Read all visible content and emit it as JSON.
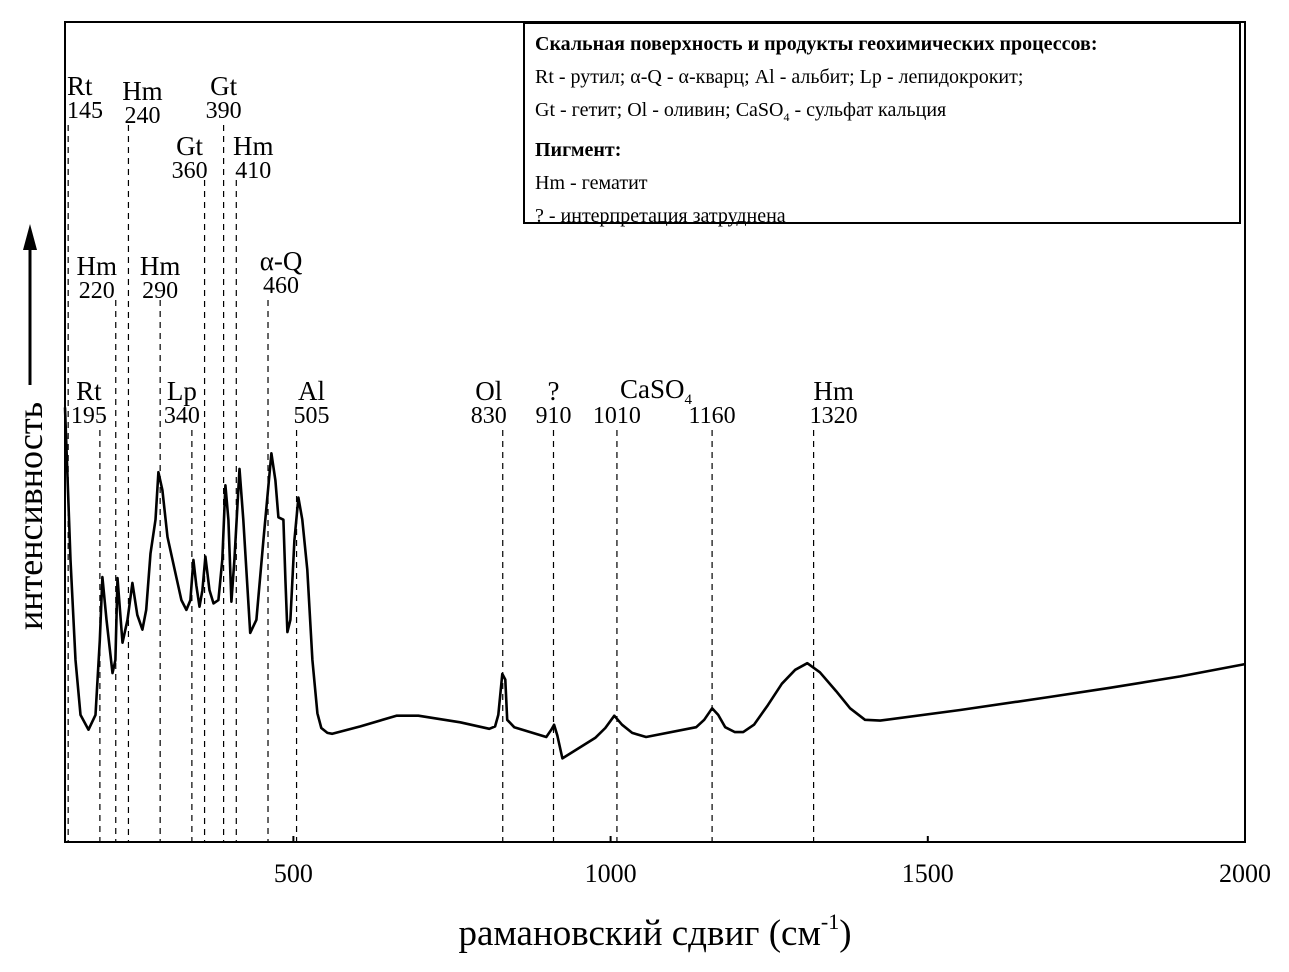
{
  "chart_data": {
    "type": "line",
    "title": "",
    "xlabel": "рамановский сдвиг (см-1)",
    "xlabel_main": "рамановский сдвиг (см",
    "xlabel_sup": "-1",
    "xlabel_close": ")",
    "ylabel": "интенсивность",
    "xlim": [
      140,
      2000
    ],
    "ylim": [
      0,
      1
    ],
    "x_ticks": [
      "500",
      "1000",
      "1500",
      "2000"
    ],
    "x_tick_values": [
      500,
      1000,
      1500,
      2000
    ],
    "grid": false,
    "y_ticks": false,
    "line_color": "#000000",
    "series": [
      {
        "x": [
          140,
          148.6,
          156.5,
          164.4,
          177,
          188,
          194.8,
          199,
          205.4,
          214.8,
          219.5,
          222.7,
          230.6,
          238.5,
          246.3,
          254,
          262,
          268,
          274.7,
          282.6,
          287.3,
          293.6,
          301.5,
          314,
          323.5,
          331.4,
          337.7,
          342.4,
          347,
          352,
          356.6,
          361.3,
          367.7,
          374,
          381.8,
          388,
          392.9,
          397.6,
          402.3,
          407,
          415,
          421,
          432,
          441.7,
          452.7,
          465.3,
          471.6,
          476.4,
          484.2,
          487.4,
          490.5,
          495.3,
          501.6,
          507.9,
          514,
          522,
          530,
          537.8,
          544,
          553.6,
          561.4,
          605.6,
          662.3,
          697,
          763,
          808.8,
          818,
          823,
          829.3,
          834,
          837,
          848,
          898.6,
          906.5,
          911,
          916,
          924,
          975.8,
          991.6,
          1005.8,
          1018,
          1034,
          1056,
          1135,
          1147.5,
          1160,
          1169.6,
          1180.6,
          1196,
          1209,
          1226,
          1248,
          1270,
          1291,
          1310,
          1330,
          1355.5,
          1377.6,
          1401,
          1425,
          1551,
          1693,
          1787,
          1898,
          2000
        ],
        "y": [
          0.53,
          0.344,
          0.222,
          0.155,
          0.137,
          0.155,
          0.246,
          0.323,
          0.271,
          0.206,
          0.222,
          0.322,
          0.243,
          0.271,
          0.316,
          0.277,
          0.259,
          0.283,
          0.352,
          0.393,
          0.451,
          0.429,
          0.372,
          0.328,
          0.295,
          0.283,
          0.295,
          0.344,
          0.313,
          0.287,
          0.307,
          0.348,
          0.307,
          0.291,
          0.295,
          0.344,
          0.435,
          0.393,
          0.293,
          0.344,
          0.455,
          0.393,
          0.255,
          0.271,
          0.368,
          0.474,
          0.441,
          0.396,
          0.393,
          0.32,
          0.256,
          0.271,
          0.368,
          0.42,
          0.393,
          0.332,
          0.222,
          0.157,
          0.139,
          0.133,
          0.132,
          0.141,
          0.154,
          0.154,
          0.146,
          0.138,
          0.141,
          0.155,
          0.205,
          0.198,
          0.149,
          0.14,
          0.128,
          0.137,
          0.143,
          0.13,
          0.102,
          0.127,
          0.139,
          0.154,
          0.143,
          0.133,
          0.128,
          0.14,
          0.149,
          0.163,
          0.155,
          0.14,
          0.134,
          0.134,
          0.143,
          0.167,
          0.193,
          0.21,
          0.218,
          0.207,
          0.184,
          0.163,
          0.149,
          0.148,
          0.161,
          0.177,
          0.188,
          0.202,
          0.217
        ]
      }
    ],
    "peak_annotations": [
      {
        "name": "Rt",
        "value": "145",
        "x": 145
      },
      {
        "name": "Hm",
        "value": "240",
        "x": 240
      },
      {
        "name": "Gt",
        "value": "390",
        "x": 390
      },
      {
        "name": "Gt",
        "value": "360",
        "x": 360
      },
      {
        "name": "Hm",
        "value": "410",
        "x": 410
      },
      {
        "name": "Hm",
        "value": "220",
        "x": 220
      },
      {
        "name": "Hm",
        "value": "290",
        "x": 290
      },
      {
        "name": "α-Q",
        "value": "460",
        "x": 460
      },
      {
        "name": "Rt",
        "value": "195",
        "x": 195
      },
      {
        "name": "Lp",
        "value": "340",
        "x": 340
      },
      {
        "name": "Al",
        "value": "505",
        "x": 505
      },
      {
        "name": "Ol",
        "value": "830",
        "x": 830
      },
      {
        "name": "?",
        "value": "910",
        "x": 910
      },
      {
        "name": "",
        "value": "1010",
        "x": 1010
      },
      {
        "name": "",
        "value": "1160",
        "x": 1160
      },
      {
        "name": "Hm",
        "value": "1320",
        "x": 1320
      }
    ],
    "group_label": {
      "main": "CaSO",
      "sub": "4",
      "covers": [
        "1010",
        "1160"
      ]
    },
    "legend": {
      "placement": "top-right",
      "heading1": "Скальная поверхность и продукты геохимических процессов:",
      "line1": "Rt - рутил; α-Q - α-кварц; Al - альбит; Lp - лепидокрокит;",
      "line2_a": "Gt - гетит; Ol - оливин; CaSO",
      "line2_sub": "4",
      "line2_b": " - сульфат кальция",
      "heading2": "Пигмент:",
      "line3": "Hm - гематит",
      "line4": "? - интерпретация затруднена"
    }
  }
}
